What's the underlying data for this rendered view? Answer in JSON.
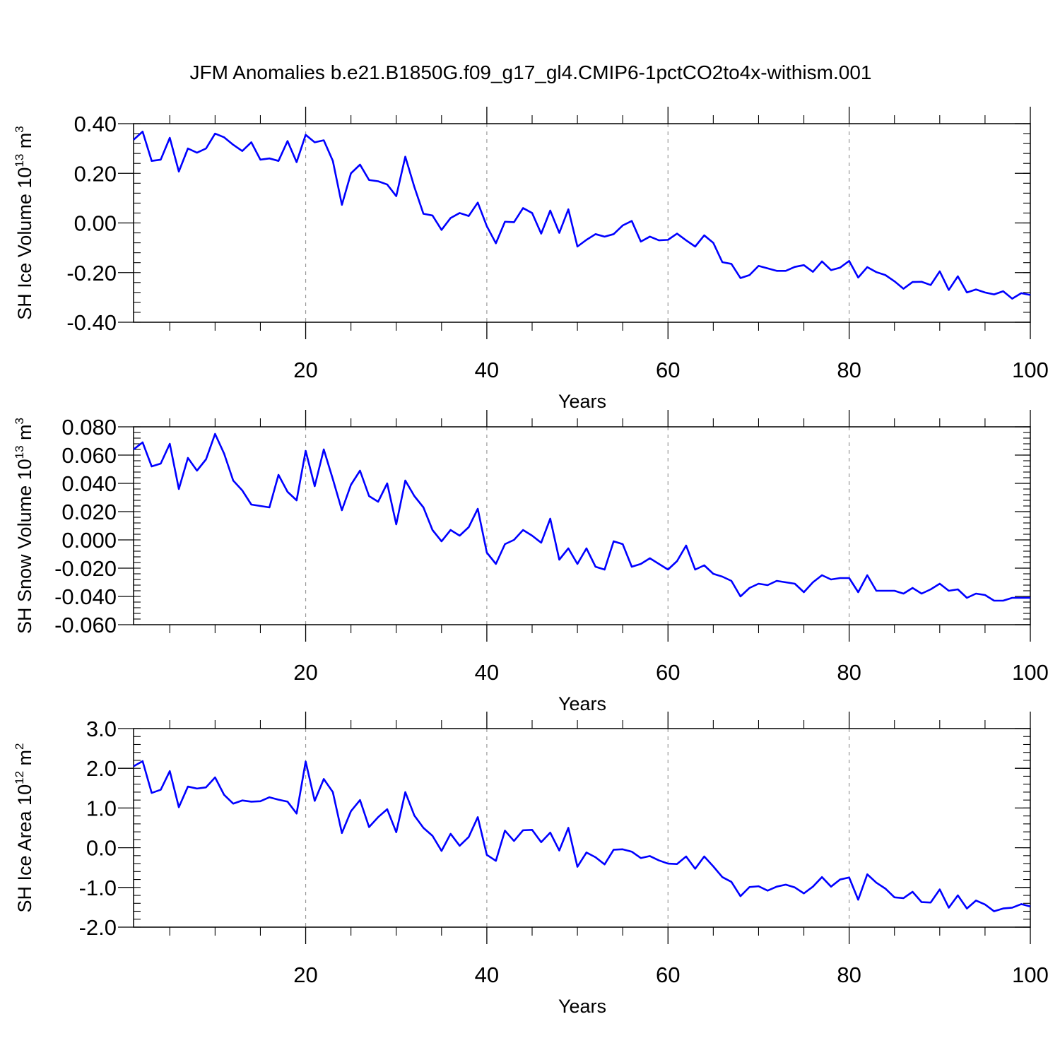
{
  "title": "JFM Anomalies b.e21.B1850G.f09_g17_gl4.CMIP6-1pctCO2to4x-withism.001",
  "line_color": "#0000ff",
  "grid_color": "#999999",
  "chart_data": [
    {
      "type": "line",
      "name": "ice-volume",
      "xlabel": "Years",
      "ylabel": {
        "main": "SH Ice Volume 10",
        "sup1": "13",
        "mid": " m",
        "sup2": "3"
      },
      "xlim": [
        1,
        100
      ],
      "ylim": [
        -0.4,
        0.4
      ],
      "xticks": [
        20,
        40,
        60,
        80,
        100
      ],
      "yticks": [
        {
          "value": -0.4,
          "label": "-0.40"
        },
        {
          "value": -0.2,
          "label": "-0.20"
        },
        {
          "value": 0.0,
          "label": "0.00"
        },
        {
          "value": 0.2,
          "label": "0.20"
        },
        {
          "value": 0.4,
          "label": "0.40"
        }
      ],
      "y_minor_step": 0.04,
      "grid": "dashed vertical at x=20,40,60,80",
      "values": [
        0.335,
        0.368,
        0.25,
        0.255,
        0.343,
        0.207,
        0.3,
        0.283,
        0.3,
        0.36,
        0.345,
        0.315,
        0.29,
        0.325,
        0.255,
        0.26,
        0.25,
        0.33,
        0.245,
        0.355,
        0.325,
        0.333,
        0.25,
        0.073,
        0.2,
        0.235,
        0.173,
        0.168,
        0.155,
        0.108,
        0.267,
        0.145,
        0.037,
        0.03,
        -0.028,
        0.02,
        0.04,
        0.028,
        0.082,
        -0.013,
        -0.082,
        0.005,
        0.003,
        0.06,
        0.04,
        -0.043,
        0.05,
        -0.04,
        0.055,
        -0.095,
        -0.068,
        -0.045,
        -0.055,
        -0.045,
        -0.01,
        0.008,
        -0.075,
        -0.055,
        -0.07,
        -0.068,
        -0.043,
        -0.07,
        -0.095,
        -0.05,
        -0.08,
        -0.158,
        -0.165,
        -0.222,
        -0.21,
        -0.173,
        -0.183,
        -0.193,
        -0.193,
        -0.177,
        -0.17,
        -0.197,
        -0.155,
        -0.19,
        -0.18,
        -0.153,
        -0.22,
        -0.178,
        -0.198,
        -0.21,
        -0.235,
        -0.265,
        -0.238,
        -0.237,
        -0.25,
        -0.195,
        -0.27,
        -0.215,
        -0.28,
        -0.268,
        -0.28,
        -0.288,
        -0.275,
        -0.305,
        -0.283,
        -0.29
      ]
    },
    {
      "type": "line",
      "name": "snow-volume",
      "xlabel": "Years",
      "ylabel": {
        "main": "SH Snow Volume 10",
        "sup1": "13",
        "mid": " m",
        "sup2": "3"
      },
      "xlim": [
        1,
        100
      ],
      "ylim": [
        -0.06,
        0.08
      ],
      "xticks": [
        20,
        40,
        60,
        80,
        100
      ],
      "yticks": [
        {
          "value": -0.06,
          "label": "-0.060"
        },
        {
          "value": -0.04,
          "label": "-0.040"
        },
        {
          "value": -0.02,
          "label": "-0.020"
        },
        {
          "value": 0.0,
          "label": "0.000"
        },
        {
          "value": 0.02,
          "label": "0.020"
        },
        {
          "value": 0.04,
          "label": "0.040"
        },
        {
          "value": 0.06,
          "label": "0.060"
        },
        {
          "value": 0.08,
          "label": "0.080"
        }
      ],
      "y_minor_step": 0.004,
      "grid": "dashed vertical at x=20,40,60,80",
      "values": [
        0.064,
        0.069,
        0.052,
        0.054,
        0.068,
        0.036,
        0.058,
        0.049,
        0.057,
        0.075,
        0.061,
        0.042,
        0.035,
        0.025,
        0.024,
        0.023,
        0.046,
        0.034,
        0.028,
        0.063,
        0.038,
        0.064,
        0.043,
        0.021,
        0.039,
        0.049,
        0.031,
        0.027,
        0.04,
        0.011,
        0.042,
        0.031,
        0.023,
        0.007,
        -0.001,
        0.007,
        0.003,
        0.009,
        0.022,
        -0.009,
        -0.017,
        -0.003,
        0.0,
        0.007,
        0.003,
        -0.002,
        0.015,
        -0.014,
        -0.006,
        -0.017,
        -0.006,
        -0.019,
        -0.021,
        -0.001,
        -0.003,
        -0.019,
        -0.017,
        -0.013,
        -0.017,
        -0.021,
        -0.015,
        -0.004,
        -0.021,
        -0.018,
        -0.024,
        -0.026,
        -0.029,
        -0.04,
        -0.034,
        -0.031,
        -0.032,
        -0.029,
        -0.03,
        -0.031,
        -0.037,
        -0.03,
        -0.025,
        -0.028,
        -0.027,
        -0.027,
        -0.037,
        -0.025,
        -0.036,
        -0.036,
        -0.036,
        -0.038,
        -0.034,
        -0.038,
        -0.035,
        -0.031,
        -0.036,
        -0.035,
        -0.041,
        -0.038,
        -0.039,
        -0.043,
        -0.043,
        -0.041,
        -0.041,
        -0.041
      ]
    },
    {
      "type": "line",
      "name": "ice-area",
      "xlabel": "Years",
      "ylabel": {
        "main": "SH Ice Area 10",
        "sup1": "12",
        "mid": " m",
        "sup2": "2"
      },
      "xlim": [
        1,
        100
      ],
      "ylim": [
        -2.0,
        3.0
      ],
      "xticks": [
        20,
        40,
        60,
        80,
        100
      ],
      "yticks": [
        {
          "value": -2.0,
          "label": "-2.0"
        },
        {
          "value": -1.0,
          "label": "-1.0"
        },
        {
          "value": 0.0,
          "label": "0.0"
        },
        {
          "value": 1.0,
          "label": "1.0"
        },
        {
          "value": 2.0,
          "label": "2.0"
        },
        {
          "value": 3.0,
          "label": "3.0"
        }
      ],
      "y_minor_step": 0.2,
      "grid": "dashed vertical at x=20,40,60,80",
      "values": [
        2.05,
        2.18,
        1.38,
        1.46,
        1.93,
        1.02,
        1.54,
        1.49,
        1.52,
        1.77,
        1.33,
        1.11,
        1.19,
        1.16,
        1.17,
        1.27,
        1.21,
        1.16,
        0.86,
        2.17,
        1.18,
        1.73,
        1.4,
        0.37,
        0.92,
        1.2,
        0.52,
        0.77,
        0.97,
        0.39,
        1.4,
        0.81,
        0.5,
        0.3,
        -0.08,
        0.35,
        0.05,
        0.27,
        0.77,
        -0.18,
        -0.33,
        0.43,
        0.17,
        0.44,
        0.45,
        0.14,
        0.38,
        -0.07,
        0.5,
        -0.48,
        -0.12,
        -0.24,
        -0.42,
        -0.05,
        -0.04,
        -0.1,
        -0.26,
        -0.21,
        -0.32,
        -0.4,
        -0.41,
        -0.22,
        -0.53,
        -0.22,
        -0.47,
        -0.74,
        -0.86,
        -1.22,
        -0.99,
        -0.97,
        -1.08,
        -0.98,
        -0.93,
        -1.0,
        -1.15,
        -0.98,
        -0.74,
        -0.98,
        -0.8,
        -0.75,
        -1.31,
        -0.67,
        -0.88,
        -1.03,
        -1.25,
        -1.27,
        -1.11,
        -1.37,
        -1.38,
        -1.05,
        -1.51,
        -1.2,
        -1.53,
        -1.33,
        -1.43,
        -1.6,
        -1.53,
        -1.51,
        -1.42,
        -1.48
      ]
    }
  ]
}
